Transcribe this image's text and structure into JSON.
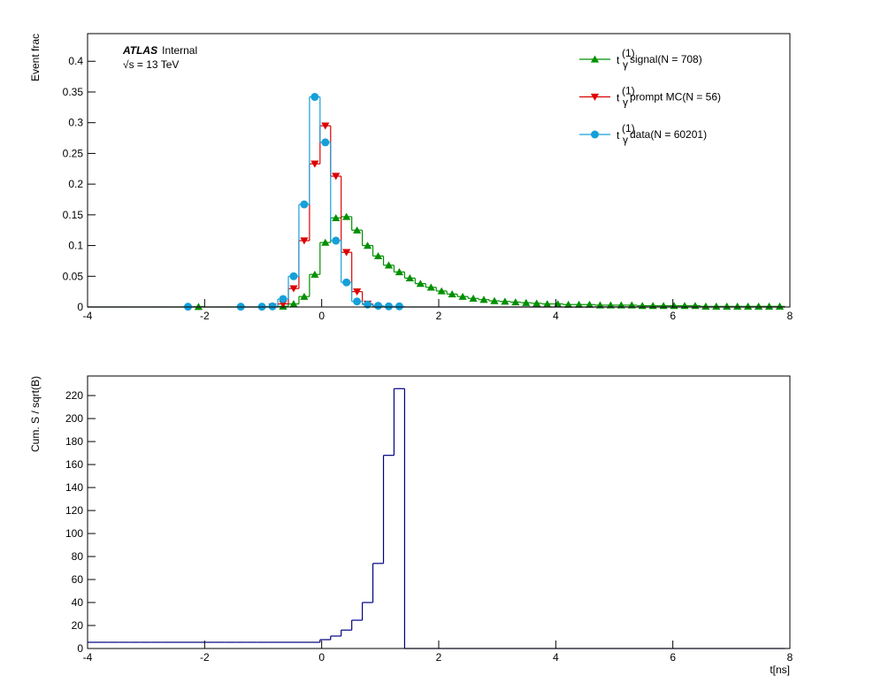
{
  "chart_data": [
    {
      "type": "histogram",
      "ylabel": "Event frac",
      "experiment": "ATLAS",
      "status": "Internal",
      "energy_label": "√s = 13 TeV",
      "legend_symbol": {
        "base": "t",
        "sup": "(1)",
        "sub": "γ"
      },
      "xlim": [
        -4,
        8
      ],
      "xticks": [
        -4,
        -2,
        0,
        2,
        4,
        6,
        8
      ],
      "ylim": [
        0,
        0.445
      ],
      "yticks": [
        0,
        0.05,
        0.1,
        0.15,
        0.2,
        0.25,
        0.3,
        0.35,
        0.4
      ],
      "bins": [
        -4,
        -3.819,
        -3.639,
        -3.458,
        -3.278,
        -3.097,
        -2.917,
        -2.736,
        -2.556,
        -2.375,
        -2.194,
        -2.014,
        -1.833,
        -1.653,
        -1.472,
        -1.292,
        -1.111,
        -0.931,
        -0.75,
        -0.569,
        -0.389,
        -0.208,
        -0.028,
        0.153,
        0.333,
        0.514,
        0.694,
        0.875,
        1.056,
        1.236,
        1.417,
        1.597,
        1.778,
        1.958,
        2.139,
        2.319,
        2.5,
        2.681,
        2.861,
        3.042,
        3.222,
        3.403,
        3.583,
        3.764,
        3.944,
        4.125,
        4.306,
        4.486,
        4.667,
        4.847,
        5.028,
        5.208,
        5.389,
        5.569,
        5.75,
        5.931,
        6.111,
        6.292,
        6.472,
        6.653,
        6.833,
        7.014,
        7.194,
        7.375,
        7.556,
        7.736,
        7.917
      ],
      "series": [
        {
          "name": "signal(N = 708)",
          "color": "#009000",
          "marker": "triangle-up",
          "values": [
            0,
            0,
            0,
            0,
            0,
            0,
            0,
            0,
            0,
            0,
            0.0005,
            0,
            0,
            0,
            0,
            0,
            0,
            0,
            0.001,
            0.005,
            0.017,
            0.053,
            0.105,
            0.145,
            0.147,
            0.125,
            0.1,
            0.083,
            0.068,
            0.057,
            0.047,
            0.038,
            0.032,
            0.026,
            0.021,
            0.017,
            0.014,
            0.012,
            0.01,
            0.009,
            0.008,
            0.007,
            0.006,
            0.005,
            0.005,
            0.004,
            0.004,
            0.004,
            0.003,
            0.003,
            0.003,
            0.003,
            0.002,
            0.002,
            0.002,
            0.002,
            0.002,
            0.002,
            0.001,
            0.001,
            0.001,
            0.001,
            0.001,
            0.001,
            0.001,
            0.001
          ]
        },
        {
          "name": "prompt MC(N = 56)",
          "color": "#dd0000",
          "marker": "triangle-down",
          "values": [
            0,
            0,
            0,
            0,
            0,
            0,
            0,
            0,
            0,
            0,
            0,
            0,
            0,
            0,
            0,
            0,
            0,
            0.0005,
            0.005,
            0.03,
            0.108,
            0.233,
            0.295,
            0.213,
            0.089,
            0.025,
            0.005,
            0,
            0,
            0,
            0,
            0,
            0,
            0,
            0,
            0,
            0,
            0,
            0,
            0,
            0,
            0,
            0,
            0,
            0,
            0,
            0,
            0,
            0,
            0,
            0,
            0,
            0,
            0,
            0,
            0,
            0,
            0,
            0,
            0,
            0,
            0,
            0,
            0,
            0,
            0
          ]
        },
        {
          "name": "data(N = 60201)",
          "color": "#16a0d8",
          "marker": "circle",
          "values": [
            0,
            0,
            0,
            0,
            0,
            0,
            0,
            0,
            0,
            0.0005,
            0,
            0,
            0,
            0,
            0.0005,
            0,
            0.0005,
            0.001,
            0.013,
            0.05,
            0.167,
            0.342,
            0.268,
            0.108,
            0.04,
            0.009,
            0.004,
            0.002,
            0.001,
            0.001,
            0,
            0,
            0,
            0,
            0,
            0,
            0,
            0,
            0,
            0,
            0,
            0,
            0,
            0,
            0,
            0,
            0,
            0,
            0,
            0,
            0,
            0,
            0,
            0,
            0,
            0,
            0,
            0,
            0,
            0,
            0,
            0,
            0,
            0,
            0,
            0
          ]
        }
      ]
    },
    {
      "type": "histogram",
      "ylabel": "Cum. S / sqrt(B)",
      "xlabel": "t[ns]",
      "xlim": [
        -4,
        8
      ],
      "xticks": [
        -4,
        -2,
        0,
        2,
        4,
        6,
        8
      ],
      "ylim": [
        0,
        237
      ],
      "yticks": [
        0,
        20,
        40,
        60,
        80,
        100,
        120,
        140,
        160,
        180,
        200,
        220
      ],
      "bins": [
        -4,
        -3.819,
        -3.639,
        -3.458,
        -3.278,
        -3.097,
        -2.917,
        -2.736,
        -2.556,
        -2.375,
        -2.194,
        -2.014,
        -1.833,
        -1.653,
        -1.472,
        -1.292,
        -1.111,
        -0.931,
        -0.75,
        -0.569,
        -0.389,
        -0.208,
        -0.028,
        0.153,
        0.333,
        0.514,
        0.694,
        0.875,
        1.056,
        1.236,
        1.417,
        1.597,
        1.778,
        1.958,
        2.139,
        2.319,
        2.5,
        2.681,
        2.861,
        3.042,
        3.222,
        3.403,
        3.583,
        3.764,
        3.944,
        4.125,
        4.306,
        4.486,
        4.667,
        4.847,
        5.028,
        5.208,
        5.389,
        5.569,
        5.75,
        5.931,
        6.111,
        6.292,
        6.472,
        6.653,
        6.833,
        7.014,
        7.194,
        7.375,
        7.556,
        7.736,
        7.917
      ],
      "color": "#000080",
      "values": [
        5.4,
        5.4,
        5.4,
        5.4,
        5.4,
        5.4,
        5.4,
        5.4,
        5.4,
        5.4,
        5.4,
        5.4,
        5.4,
        5.4,
        5.4,
        5.4,
        5.4,
        5.4,
        5.4,
        5.4,
        5.4,
        5.4,
        7.7,
        10.8,
        16,
        24.6,
        40,
        74,
        168,
        226,
        0,
        0,
        0,
        0,
        0,
        0,
        0,
        0,
        0,
        0,
        0,
        0,
        0,
        0,
        0,
        0,
        0,
        0,
        0,
        0,
        0,
        0,
        0,
        0,
        0,
        0,
        0,
        0,
        0,
        0,
        0,
        0,
        0,
        0,
        0,
        0
      ]
    }
  ]
}
